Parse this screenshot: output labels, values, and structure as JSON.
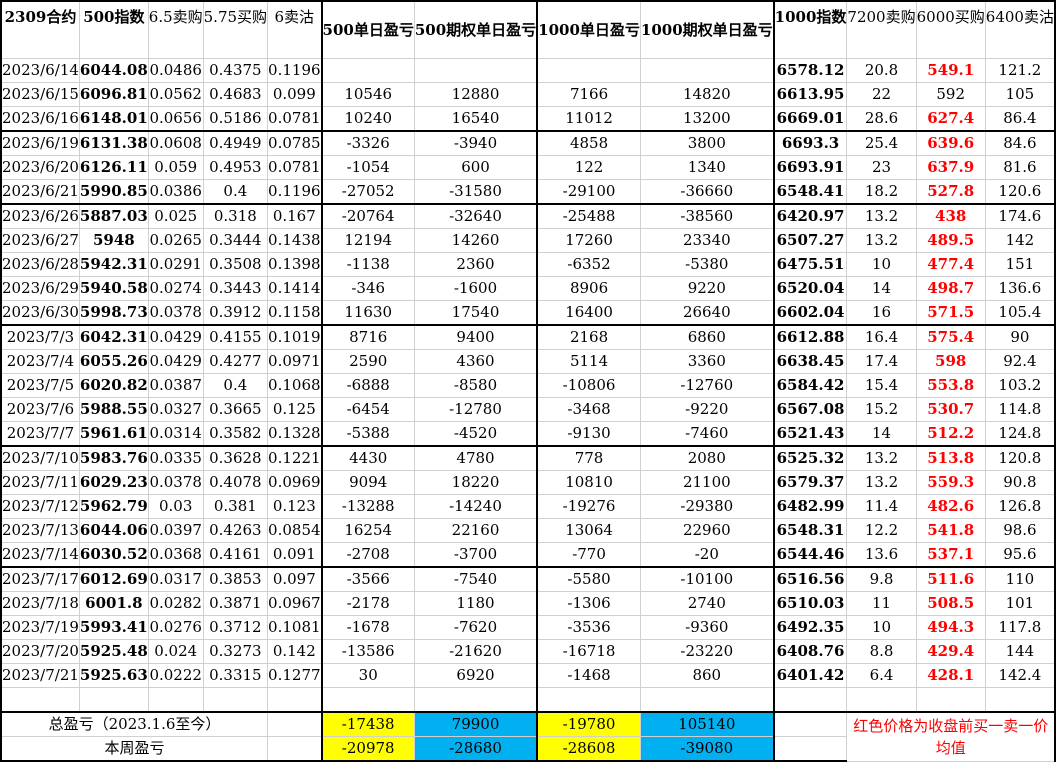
{
  "headers": [
    "2309合约",
    "500指数",
    "6.5卖购",
    "5.75买购",
    "6卖沽",
    "500单日盈亏",
    "500期权单日盈亏",
    "1000单日盈亏",
    "1000期权单日盈亏",
    "1000指数",
    "7200卖购",
    "6000买购",
    "6400卖沽"
  ],
  "rows": [
    {
      "date": "2023/6/14",
      "idx500": "6044.08",
      "c1": "0.0486",
      "c2": "0.4375",
      "c3": "0.1196",
      "p500": "",
      "po500": "",
      "p1000": "",
      "po1000": "",
      "idx1000": "6578.12",
      "c4": "20.8",
      "c5": "549.1",
      "c6": "121.2"
    },
    {
      "date": "2023/6/15",
      "idx500": "6096.81",
      "c1": "0.0562",
      "c2": "0.4683",
      "c3": "0.099",
      "p500": "10546",
      "po500": "12880",
      "p1000": "7166",
      "po1000": "14820",
      "idx1000": "6613.95",
      "c4": "22",
      "c5": "592",
      "c6": "105"
    },
    {
      "date": "2023/6/16",
      "idx500": "6148.01",
      "c1": "0.0656",
      "c2": "0.5186",
      "c3": "0.0781",
      "p500": "10240",
      "po500": "16540",
      "p1000": "11012",
      "po1000": "13200",
      "idx1000": "6669.01",
      "c4": "28.6",
      "c5": "627.4",
      "c6": "86.4"
    },
    {
      "date": "2023/6/19",
      "idx500": "6131.38",
      "c1": "0.0608",
      "c2": "0.4949",
      "c3": "0.0785",
      "p500": "-3326",
      "po500": "-3940",
      "p1000": "4858",
      "po1000": "3800",
      "idx1000": "6693.3",
      "c4": "25.4",
      "c5": "639.6",
      "c6": "84.6"
    },
    {
      "date": "2023/6/20",
      "idx500": "6126.11",
      "c1": "0.059",
      "c2": "0.4953",
      "c3": "0.0781",
      "p500": "-1054",
      "po500": "600",
      "p1000": "122",
      "po1000": "1340",
      "idx1000": "6693.91",
      "c4": "23",
      "c5": "637.9",
      "c6": "81.6"
    },
    {
      "date": "2023/6/21",
      "idx500": "5990.85",
      "c1": "0.0386",
      "c2": "0.4",
      "c3": "0.1196",
      "p500": "-27052",
      "po500": "-31580",
      "p1000": "-29100",
      "po1000": "-36660",
      "idx1000": "6548.41",
      "c4": "18.2",
      "c5": "527.8",
      "c6": "120.6"
    },
    {
      "date": "2023/6/26",
      "idx500": "5887.03",
      "c1": "0.025",
      "c2": "0.318",
      "c3": "0.167",
      "p500": "-20764",
      "po500": "-32640",
      "p1000": "-25488",
      "po1000": "-38560",
      "idx1000": "6420.97",
      "c4": "13.2",
      "c5": "438",
      "c6": "174.6"
    },
    {
      "date": "2023/6/27",
      "idx500": "5948",
      "c1": "0.0265",
      "c2": "0.3444",
      "c3": "0.1438",
      "p500": "12194",
      "po500": "14260",
      "p1000": "17260",
      "po1000": "23340",
      "idx1000": "6507.27",
      "c4": "13.2",
      "c5": "489.5",
      "c6": "142"
    },
    {
      "date": "2023/6/28",
      "idx500": "5942.31",
      "c1": "0.0291",
      "c2": "0.3508",
      "c3": "0.1398",
      "p500": "-1138",
      "po500": "2360",
      "p1000": "-6352",
      "po1000": "-5380",
      "idx1000": "6475.51",
      "c4": "10",
      "c5": "477.4",
      "c6": "151"
    },
    {
      "date": "2023/6/29",
      "idx500": "5940.58",
      "c1": "0.0274",
      "c2": "0.3443",
      "c3": "0.1414",
      "p500": "-346",
      "po500": "-1600",
      "p1000": "8906",
      "po1000": "9220",
      "idx1000": "6520.04",
      "c4": "14",
      "c5": "498.7",
      "c6": "136.6"
    },
    {
      "date": "2023/6/30",
      "idx500": "5998.73",
      "c1": "0.0378",
      "c2": "0.3912",
      "c3": "0.1158",
      "p500": "11630",
      "po500": "17540",
      "p1000": "16400",
      "po1000": "26640",
      "idx1000": "6602.04",
      "c4": "16",
      "c5": "571.5",
      "c6": "105.4"
    },
    {
      "date": "2023/7/3",
      "idx500": "6042.31",
      "c1": "0.0429",
      "c2": "0.4155",
      "c3": "0.1019",
      "p500": "8716",
      "po500": "9400",
      "p1000": "2168",
      "po1000": "6860",
      "idx1000": "6612.88",
      "c4": "16.4",
      "c5": "575.4",
      "c6": "90"
    },
    {
      "date": "2023/7/4",
      "idx500": "6055.26",
      "c1": "0.0429",
      "c2": "0.4277",
      "c3": "0.0971",
      "p500": "2590",
      "po500": "4360",
      "p1000": "5114",
      "po1000": "3360",
      "idx1000": "6638.45",
      "c4": "17.4",
      "c5": "598",
      "c6": "92.4"
    },
    {
      "date": "2023/7/5",
      "idx500": "6020.82",
      "c1": "0.0387",
      "c2": "0.4",
      "c3": "0.1068",
      "p500": "-6888",
      "po500": "-8580",
      "p1000": "-10806",
      "po1000": "-12760",
      "idx1000": "6584.42",
      "c4": "15.4",
      "c5": "553.8",
      "c6": "103.2"
    },
    {
      "date": "2023/7/6",
      "idx500": "5988.55",
      "c1": "0.0327",
      "c2": "0.3665",
      "c3": "0.125",
      "p500": "-6454",
      "po500": "-12780",
      "p1000": "-3468",
      "po1000": "-9220",
      "idx1000": "6567.08",
      "c4": "15.2",
      "c5": "530.7",
      "c6": "114.8"
    },
    {
      "date": "2023/7/7",
      "idx500": "5961.61",
      "c1": "0.0314",
      "c2": "0.3582",
      "c3": "0.1328",
      "p500": "-5388",
      "po500": "-4520",
      "p1000": "-9130",
      "po1000": "-7460",
      "idx1000": "6521.43",
      "c4": "14",
      "c5": "512.2",
      "c6": "124.8"
    },
    {
      "date": "2023/7/10",
      "idx500": "5983.76",
      "c1": "0.0335",
      "c2": "0.3628",
      "c3": "0.1221",
      "p500": "4430",
      "po500": "4780",
      "p1000": "778",
      "po1000": "2080",
      "idx1000": "6525.32",
      "c4": "13.2",
      "c5": "513.8",
      "c6": "120.8"
    },
    {
      "date": "2023/7/11",
      "idx500": "6029.23",
      "c1": "0.0378",
      "c2": "0.4078",
      "c3": "0.0969",
      "p500": "9094",
      "po500": "18220",
      "p1000": "10810",
      "po1000": "21100",
      "idx1000": "6579.37",
      "c4": "13.2",
      "c5": "559.3",
      "c6": "90.8"
    },
    {
      "date": "2023/7/12",
      "idx500": "5962.79",
      "c1": "0.03",
      "c2": "0.381",
      "c3": "0.123",
      "p500": "-13288",
      "po500": "-14240",
      "p1000": "-19276",
      "po1000": "-29380",
      "idx1000": "6482.99",
      "c4": "11.4",
      "c5": "482.6",
      "c6": "126.8"
    },
    {
      "date": "2023/7/13",
      "idx500": "6044.06",
      "c1": "0.0397",
      "c2": "0.4263",
      "c3": "0.0854",
      "p500": "16254",
      "po500": "22160",
      "p1000": "13064",
      "po1000": "22960",
      "idx1000": "6548.31",
      "c4": "12.2",
      "c5": "541.8",
      "c6": "98.6"
    },
    {
      "date": "2023/7/14",
      "idx500": "6030.52",
      "c1": "0.0368",
      "c2": "0.4161",
      "c3": "0.091",
      "p500": "-2708",
      "po500": "-3700",
      "p1000": "-770",
      "po1000": "-20",
      "idx1000": "6544.46",
      "c4": "13.6",
      "c5": "537.1",
      "c6": "95.6"
    },
    {
      "date": "2023/7/17",
      "idx500": "6012.69",
      "c1": "0.0317",
      "c2": "0.3853",
      "c3": "0.097",
      "p500": "-3566",
      "po500": "-7540",
      "p1000": "-5580",
      "po1000": "-10100",
      "idx1000": "6516.56",
      "c4": "9.8",
      "c5": "511.6",
      "c6": "110"
    },
    {
      "date": "2023/7/18",
      "idx500": "6001.8",
      "c1": "0.0282",
      "c2": "0.3871",
      "c3": "0.0967",
      "p500": "-2178",
      "po500": "1180",
      "p1000": "-1306",
      "po1000": "2740",
      "idx1000": "6510.03",
      "c4": "11",
      "c5": "508.5",
      "c6": "101"
    },
    {
      "date": "2023/7/19",
      "idx500": "5993.41",
      "c1": "0.0276",
      "c2": "0.3712",
      "c3": "0.1081",
      "p500": "-1678",
      "po500": "-7620",
      "p1000": "-3536",
      "po1000": "-9360",
      "idx1000": "6492.35",
      "c4": "10",
      "c5": "494.3",
      "c6": "117.8"
    },
    {
      "date": "2023/7/20",
      "idx500": "5925.48",
      "c1": "0.024",
      "c2": "0.3273",
      "c3": "0.142",
      "p500": "-13586",
      "po500": "-21620",
      "p1000": "-16718",
      "po1000": "-23220",
      "idx1000": "6408.76",
      "c4": "8.8",
      "c5": "429.4",
      "c6": "144"
    },
    {
      "date": "2023/7/21",
      "idx500": "5925.63",
      "c1": "0.0222",
      "c2": "0.3315",
      "c3": "0.1277",
      "p500": "30",
      "po500": "6920",
      "p1000": "-1468",
      "po1000": "860",
      "idx1000": "6401.42",
      "c4": "6.4",
      "c5": "428.1",
      "c6": "142.4"
    }
  ],
  "total": {
    "label": "总盈亏（2023.1.6至今）",
    "p500": "-17438",
    "po500": "79900",
    "p1000": "-19780",
    "po1000": "105140"
  },
  "weekly": {
    "label": "本周盈亏",
    "p500": "-20978",
    "po500": "-28680",
    "p1000": "-28608",
    "po1000": "-39080"
  },
  "note": "红色价格为收盘前买一卖一价均值",
  "colors": {
    "red": "#ff0000",
    "yellow": "#ffff00",
    "blue": "#00b0f0"
  }
}
